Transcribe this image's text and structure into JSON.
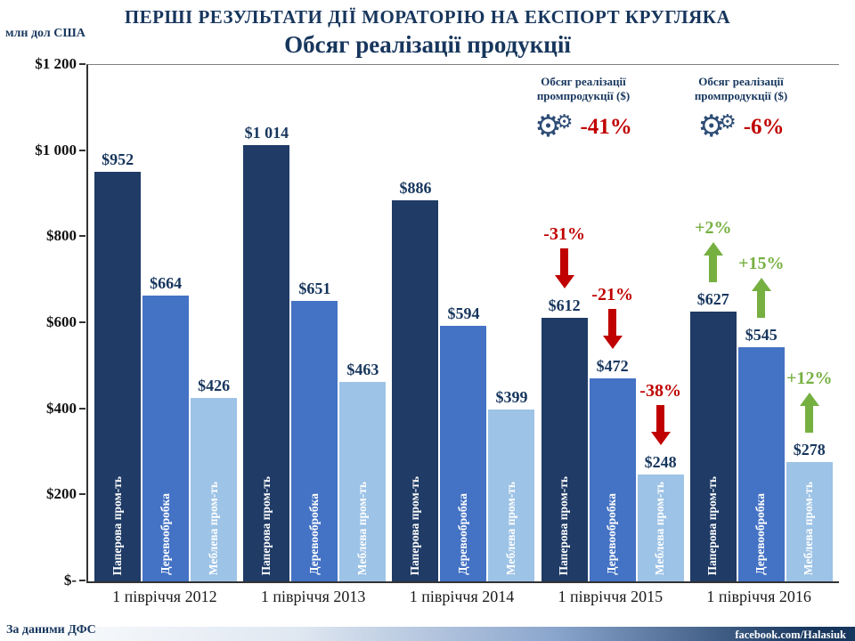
{
  "chart_data": {
    "type": "bar",
    "title": "ПЕРШІ РЕЗУЛЬТАТИ ДІЇ МОРАТОРІЮ НА ЕКСПОРТ КРУГЛЯКА",
    "subtitle": "Обсяг реалізації продукції",
    "ylabel": "млн дол США",
    "ylim": [
      0,
      1200
    ],
    "ytick_labels": [
      "$1 200",
      "$1 000",
      "$800",
      "$600",
      "$400",
      "$200",
      "$-"
    ],
    "grid": false,
    "legend_position": "none",
    "categories": [
      "1 півріччя 2012",
      "1 півріччя 2013",
      "1 півріччя 2014",
      "1 півріччя 2015",
      "1 півріччя 2016"
    ],
    "series": [
      {
        "name": "Паперова пром-ть",
        "color": "#1f3b66",
        "values": [
          952,
          1014,
          886,
          612,
          627
        ],
        "labels": [
          "$952",
          "$1 014",
          "$886",
          "$612",
          "$627"
        ]
      },
      {
        "name": "Деревообробка",
        "color": "#4472c4",
        "values": [
          664,
          651,
          594,
          472,
          545
        ],
        "labels": [
          "$664",
          "$651",
          "$594",
          "$472",
          "$545"
        ]
      },
      {
        "name": "Меблева пром-ть",
        "color": "#9dc3e6",
        "values": [
          426,
          463,
          399,
          248,
          278
        ],
        "labels": [
          "$426",
          "$463",
          "$399",
          "$248",
          "$278"
        ]
      }
    ],
    "annotations": [
      {
        "category_index": 3,
        "series_index": 0,
        "label": "-31%",
        "direction": "down"
      },
      {
        "category_index": 3,
        "series_index": 1,
        "label": "-21%",
        "direction": "down"
      },
      {
        "category_index": 3,
        "series_index": 2,
        "label": "-38%",
        "direction": "down"
      },
      {
        "category_index": 4,
        "series_index": 0,
        "label": "+2%",
        "direction": "up"
      },
      {
        "category_index": 4,
        "series_index": 1,
        "label": "+15%",
        "direction": "up"
      },
      {
        "category_index": 4,
        "series_index": 2,
        "label": "+12%",
        "direction": "up"
      }
    ],
    "colors": {
      "decrease": "#c00000",
      "increase": "#76b041",
      "title": "#17365d"
    },
    "callouts": [
      {
        "line1": "Обсяг реалізації",
        "line2": "промпродукції ($)",
        "value": "-41%",
        "icon": "gears-icon"
      },
      {
        "line1": "Обсяг реалізації",
        "line2": "промпродукції ($)",
        "value": "-6%",
        "icon": "gears-icon"
      }
    ]
  },
  "footer": {
    "source": "За даними ДФС",
    "credit": "facebook.com/Halasiuk"
  }
}
